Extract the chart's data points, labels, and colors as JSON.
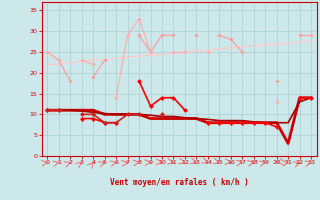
{
  "x": [
    0,
    1,
    2,
    3,
    4,
    5,
    6,
    7,
    8,
    9,
    10,
    11,
    12,
    13,
    14,
    15,
    16,
    17,
    18,
    19,
    20,
    21,
    22,
    23
  ],
  "line1": [
    25,
    23,
    18,
    null,
    19,
    23,
    null,
    null,
    29,
    25,
    29,
    29,
    null,
    29,
    null,
    29,
    28,
    25,
    null,
    null,
    18,
    null,
    29,
    29
  ],
  "line2": [
    25,
    23,
    null,
    23,
    22,
    null,
    14,
    29,
    33,
    25,
    null,
    25,
    25,
    null,
    25,
    null,
    null,
    null,
    null,
    null,
    13,
    null,
    null,
    29
  ],
  "line3_trend": [
    22,
    22,
    22.4,
    22.8,
    23,
    23.2,
    23.5,
    23.8,
    24,
    24.2,
    24.4,
    24.7,
    25,
    25.2,
    25.4,
    25.7,
    26,
    26.2,
    26.5,
    26.7,
    26.9,
    27.1,
    27.4,
    27.6
  ],
  "line4": [
    11,
    11,
    null,
    9,
    9,
    8,
    8,
    null,
    18,
    12,
    14,
    14,
    11,
    null,
    8,
    8,
    8,
    8,
    8,
    8,
    7,
    null,
    14,
    14
  ],
  "line5": [
    11,
    11,
    null,
    10,
    10,
    8,
    8,
    10,
    10,
    null,
    10,
    null,
    null,
    null,
    null,
    null,
    null,
    null,
    null,
    null,
    null,
    null,
    null,
    null
  ],
  "line6_trend": [
    11,
    11,
    11,
    11,
    11,
    10,
    10,
    10,
    10,
    9,
    9,
    9,
    9,
    9,
    8,
    8,
    8,
    8,
    8,
    8,
    8,
    3,
    14,
    14
  ],
  "line7_trend": [
    11,
    11,
    11,
    10.8,
    10.5,
    10.2,
    10,
    10,
    10,
    9.8,
    9.5,
    9.5,
    9.2,
    9,
    8.8,
    8.5,
    8.5,
    8.5,
    8.2,
    8,
    8,
    8,
    13,
    14
  ],
  "bg_color": "#cce8ea",
  "grid_color": "#aacfd2",
  "line1_color": "#ff9999",
  "line2_color": "#ffaaaa",
  "line3_color": "#ffcccc",
  "line4_color": "#ff0000",
  "line5_color": "#cc2222",
  "line6_color": "#cc0000",
  "line7_color": "#aa0000",
  "arrow_color": "#ff5555",
  "tick_color": "#cc0000",
  "xlabel": "Vent moyen/en rafales ( km/h )",
  "xlim": [
    -0.5,
    23.5
  ],
  "ylim": [
    0,
    37
  ],
  "yticks": [
    0,
    5,
    10,
    15,
    20,
    25,
    30,
    35
  ],
  "xticks": [
    0,
    1,
    2,
    3,
    4,
    5,
    6,
    7,
    8,
    9,
    10,
    11,
    12,
    13,
    14,
    15,
    16,
    17,
    18,
    19,
    20,
    21,
    22,
    23
  ],
  "arrow_angles": [
    15,
    20,
    30,
    45,
    60,
    30,
    20,
    15,
    10,
    5,
    -5,
    -10,
    -15,
    -20,
    -25,
    -15,
    -10,
    10,
    15,
    20,
    -170,
    15,
    30,
    20
  ]
}
